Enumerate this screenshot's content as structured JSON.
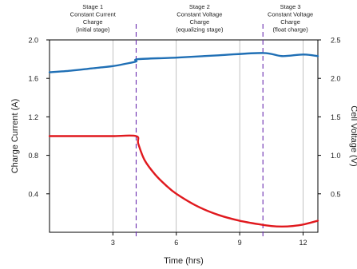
{
  "chart_data": {
    "type": "line",
    "title": "",
    "xlabel": "Time (hrs)",
    "ylabel_left": "Charge Current (A)",
    "ylabel_right": "Cell Voltage (V)",
    "xlim": [
      0,
      12.7
    ],
    "ylim_left": [
      0,
      2.0
    ],
    "ylim_right": [
      0,
      2.5
    ],
    "x_ticks": [
      3,
      6,
      9,
      12
    ],
    "y_ticks_left": [
      0.4,
      0.8,
      1.2,
      1.6,
      2.0
    ],
    "y_ticks_right": [
      0.5,
      1.0,
      1.5,
      2.0,
      2.5
    ],
    "x_tick_labels": [
      "3",
      "6",
      "9",
      "12"
    ],
    "y_tick_labels_left": [
      "0.4",
      "0.8",
      "1.2",
      "1.6",
      "2.0"
    ],
    "y_tick_labels_right": [
      "0.5",
      "1.0",
      "1.5",
      "2.0",
      "2.5"
    ],
    "grid": "vertical",
    "stage_dividers": [
      4.1,
      10.1
    ],
    "stages": [
      {
        "lines": [
          "Stage 1",
          "Constant Current",
          "Charge",
          "(initial stage)"
        ],
        "x_center": 2.05
      },
      {
        "lines": [
          "Stage 2",
          "Constant Voltage",
          "Charge",
          "(equalizing stage)"
        ],
        "x_center": 7.1
      },
      {
        "lines": [
          "Stage 3",
          "Constant Voltage",
          "Charge",
          "(float charge)"
        ],
        "x_center": 11.4
      }
    ],
    "series": [
      {
        "axis": "right",
        "color": "#1f6fb5",
        "x": [
          0,
          1,
          2,
          3,
          3.6,
          4.1,
          4.2,
          6,
          8,
          10.1,
          11,
          12,
          12.7
        ],
        "y": [
          2.08,
          2.1,
          2.13,
          2.16,
          2.19,
          2.22,
          2.25,
          2.27,
          2.3,
          2.33,
          2.29,
          2.31,
          2.29
        ]
      },
      {
        "axis": "left",
        "color": "#e0191e",
        "x": [
          0,
          1,
          2,
          3,
          4.1,
          4.2,
          4.5,
          5,
          5.5,
          6,
          7,
          8,
          9,
          10,
          10.5,
          11,
          11.5,
          12,
          12.7
        ],
        "y": [
          1.0,
          1.0,
          1.0,
          1.0,
          1.0,
          0.92,
          0.75,
          0.6,
          0.49,
          0.4,
          0.27,
          0.18,
          0.12,
          0.08,
          0.065,
          0.06,
          0.065,
          0.08,
          0.12
        ]
      }
    ]
  },
  "colors": {
    "current": "#e0191e",
    "voltage": "#1f6fb5",
    "divider": "#6a2cae",
    "grid": "#999999",
    "axis": "#000000"
  }
}
